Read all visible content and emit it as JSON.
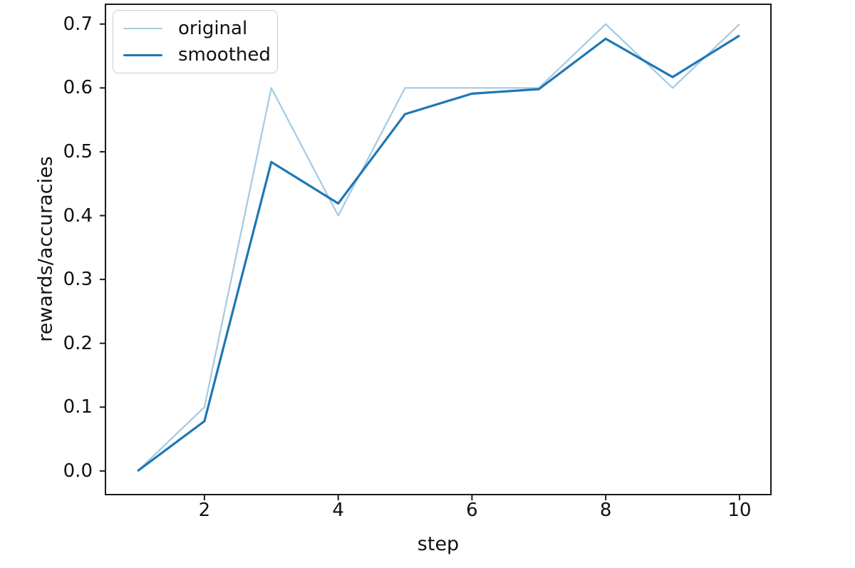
{
  "figure": {
    "background": "#ffffff",
    "spine_color": "#1a1a1a",
    "tick_color": "#1a1a1a",
    "text_color": "#111111",
    "legend_border_color": "#cccccc"
  },
  "chart_data": {
    "type": "line",
    "title": "",
    "xlabel": "step",
    "ylabel": "rewards/accuracies",
    "grid": false,
    "legend_position": "upper left",
    "xlim": [
      0.52,
      10.47
    ],
    "ylim": [
      -0.037,
      0.731
    ],
    "x": [
      1,
      2,
      3,
      4,
      5,
      6,
      7,
      8,
      9,
      10
    ],
    "x_ticks": [
      {
        "value": 2,
        "label": "2"
      },
      {
        "value": 4,
        "label": "4"
      },
      {
        "value": 6,
        "label": "6"
      },
      {
        "value": 8,
        "label": "8"
      },
      {
        "value": 10,
        "label": "10"
      }
    ],
    "y_ticks": [
      {
        "value": 0.0,
        "label": "0.0"
      },
      {
        "value": 0.1,
        "label": "0.1"
      },
      {
        "value": 0.2,
        "label": "0.2"
      },
      {
        "value": 0.3,
        "label": "0.3"
      },
      {
        "value": 0.4,
        "label": "0.4"
      },
      {
        "value": 0.5,
        "label": "0.5"
      },
      {
        "value": 0.6,
        "label": "0.6"
      },
      {
        "value": 0.7,
        "label": "0.7"
      }
    ],
    "series": [
      {
        "name": "original",
        "color": "#a8cbe3",
        "line_width": 2.3,
        "values": [
          0.0,
          0.1,
          0.6,
          0.4,
          0.6,
          0.6,
          0.6,
          0.7,
          0.6,
          0.7
        ]
      },
      {
        "name": "smoothed",
        "color": "#1f77b4",
        "line_width": 3.2,
        "values": [
          0.0,
          0.078,
          0.484,
          0.419,
          0.559,
          0.591,
          0.598,
          0.677,
          0.617,
          0.682
        ]
      }
    ]
  }
}
